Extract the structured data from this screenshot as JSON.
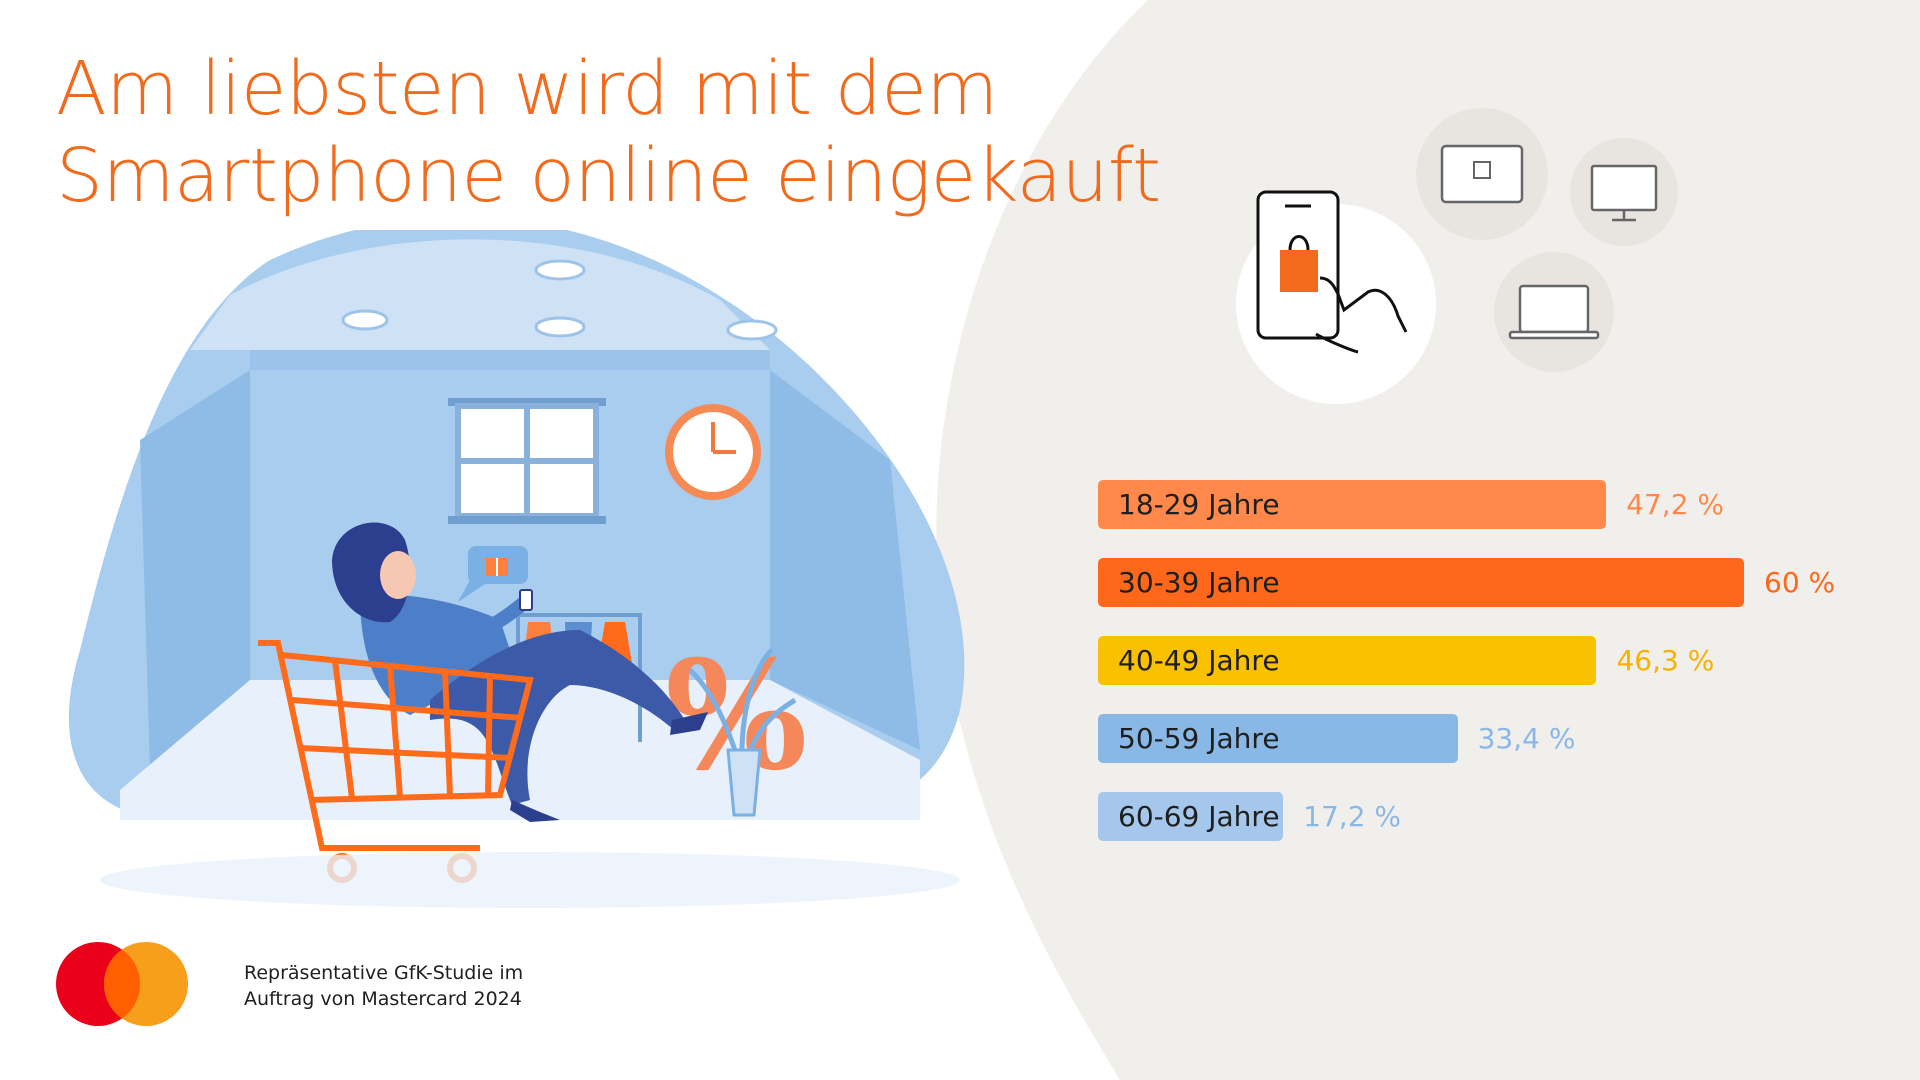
{
  "header": {
    "title_line1": "Am liebsten wird mit dem",
    "title_line2": "Smartphone online eingekauft"
  },
  "illustration": {
    "subject": "woman-in-shopping-cart-with-smartphone",
    "percent_sign": "%"
  },
  "device_icons": [
    "smartphone-shopping-icon",
    "tablet-shopping-icon",
    "desktop-shopping-icon",
    "laptop-shopping-icon"
  ],
  "chart_data": {
    "type": "bar",
    "orientation": "horizontal",
    "title": "Am liebsten wird mit dem Smartphone online eingekauft",
    "categories": [
      "18-29 Jahre",
      "30-39 Jahre",
      "40-49 Jahre",
      "50-59 Jahre",
      "60-69 Jahre"
    ],
    "values": [
      47.2,
      60,
      46.3,
      33.4,
      17.2
    ],
    "value_labels": [
      "47,2 %",
      "60 %",
      "46,3 %",
      "33,4 %",
      "17,2 %"
    ],
    "bar_colors": [
      "#ff884a",
      "#ff671b",
      "#f9c100",
      "#8ab8e6",
      "#a5c7ec"
    ],
    "value_label_colors": [
      "#ff884a",
      "#ff671b",
      "#f9b100",
      "#8ab8e6",
      "#8ab8e6"
    ],
    "unit": "%",
    "xlim": [
      0,
      60
    ],
    "xlabel": "",
    "ylabel": "",
    "grid": false,
    "legend": "none"
  },
  "footer": {
    "source_line1": "Repräsentative GfK-Studie im",
    "source_line2": "Auftrag von Mastercard 2024",
    "logo_colors": [
      "#eb001b",
      "#f79e1b",
      "#ff5f00"
    ]
  },
  "colors": {
    "accent": "#f26a1b",
    "panel_background": "#f1efec",
    "illustration_blue": "#a9cdee"
  }
}
